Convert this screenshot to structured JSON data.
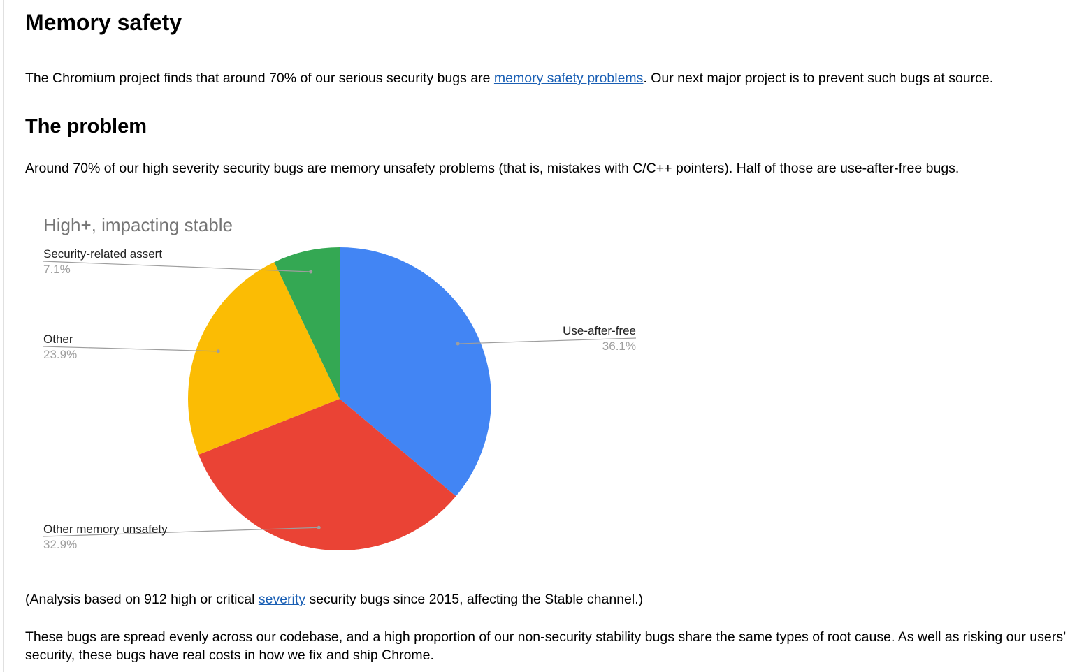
{
  "heading": "Memory safety",
  "intro": {
    "before": "The Chromium project finds that around 70% of our serious security bugs are ",
    "link": "memory safety problems",
    "after": ". Our next major project is to prevent such bugs at source."
  },
  "problem_heading": "The problem",
  "problem_text": "Around 70% of our high severity security bugs are memory unsafety problems (that is, mistakes with C/C++ pointers). Half of those are use-after-free bugs.",
  "analysis": {
    "before": "(Analysis based on 912 high or critical ",
    "link": "severity",
    "after": " security bugs since 2015, affecting the Stable channel.)"
  },
  "closing_text": "These bugs are spread evenly across our codebase, and a high proportion of our non-security stability bugs share the same types of root cause. As well as risking our users’ security, these bugs have real costs in how we fix and ship Chrome.",
  "chart_data": {
    "type": "pie",
    "title": "High+, impacting stable",
    "slices": [
      {
        "label": "Use-after-free",
        "value": 36.1,
        "value_label": "36.1%",
        "color": "#4285f4"
      },
      {
        "label": "Other memory unsafety",
        "value": 32.9,
        "value_label": "32.9%",
        "color": "#ea4335"
      },
      {
        "label": "Other",
        "value": 23.9,
        "value_label": "23.9%",
        "color": "#fbbc04"
      },
      {
        "label": "Security-related assert",
        "value": 7.1,
        "value_label": "7.1%",
        "color": "#34a853"
      }
    ],
    "legend": "labeled-lines"
  }
}
